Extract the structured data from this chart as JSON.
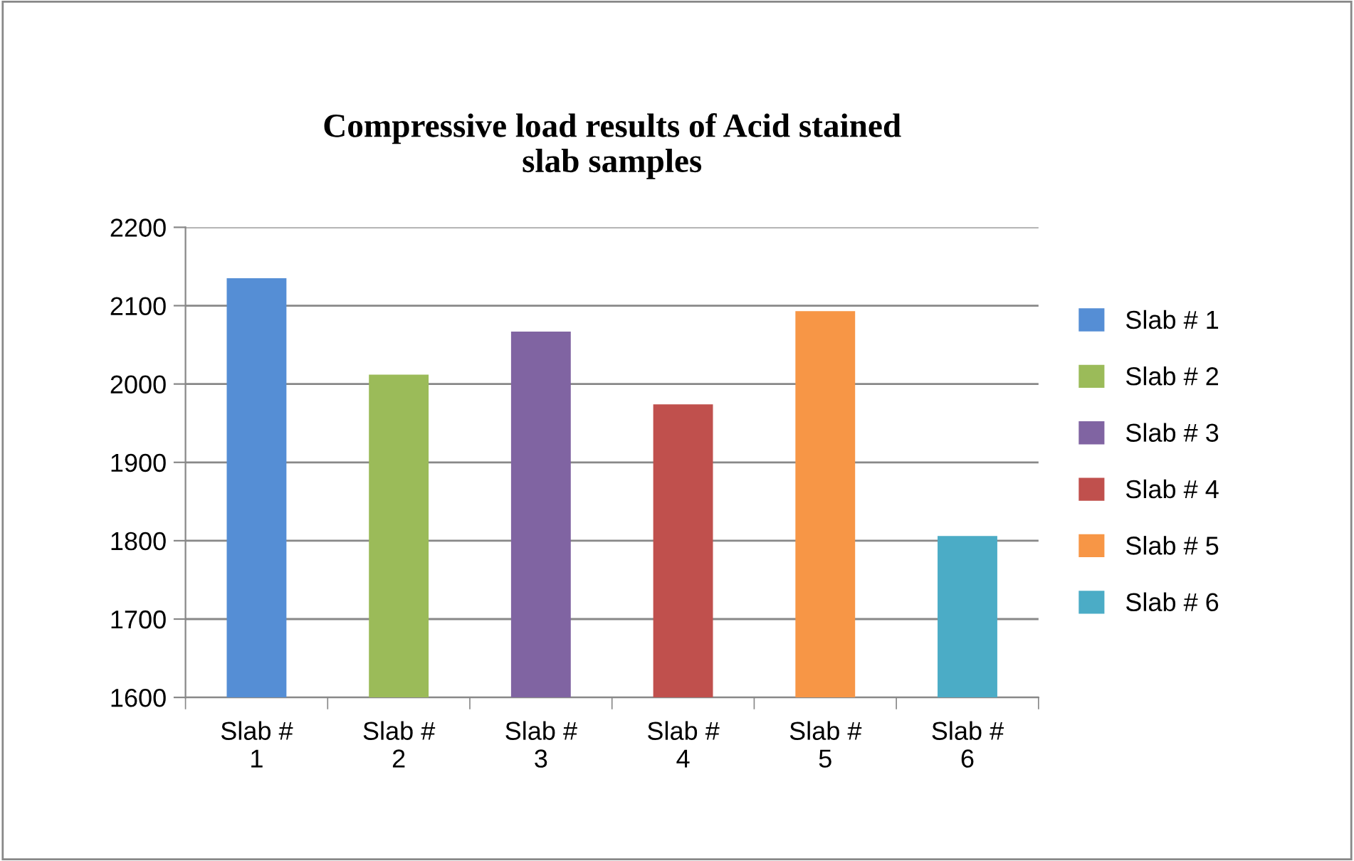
{
  "chart_data": {
    "type": "bar",
    "title": "Compressive load results of Acid stained\nslab samples",
    "categories": [
      "Slab # 1",
      "Slab # 2",
      "Slab # 3",
      "Slab # 4",
      "Slab # 5",
      "Slab # 6"
    ],
    "series": [
      {
        "name": "Slab # 1",
        "color": "#558ed5",
        "values": [
          2135,
          null,
          null,
          null,
          null,
          null
        ]
      },
      {
        "name": "Slab # 2",
        "color": "#9bbb59",
        "values": [
          null,
          2012,
          null,
          null,
          null,
          null
        ]
      },
      {
        "name": "Slab # 3",
        "color": "#8064a2",
        "values": [
          null,
          null,
          2067,
          null,
          null,
          null
        ]
      },
      {
        "name": "Slab # 4",
        "color": "#c0504d",
        "values": [
          null,
          null,
          null,
          1974,
          null,
          null
        ]
      },
      {
        "name": "Slab # 5",
        "color": "#f79646",
        "values": [
          null,
          null,
          null,
          null,
          2093,
          null
        ]
      },
      {
        "name": "Slab # 6",
        "color": "#4bacc6",
        "values": [
          null,
          null,
          null,
          null,
          null,
          1806
        ]
      }
    ],
    "ylim": [
      1600,
      2200
    ],
    "yticks": [
      1600,
      1700,
      1800,
      1900,
      2000,
      2100,
      2200
    ],
    "grid": "y",
    "legend": "right"
  }
}
